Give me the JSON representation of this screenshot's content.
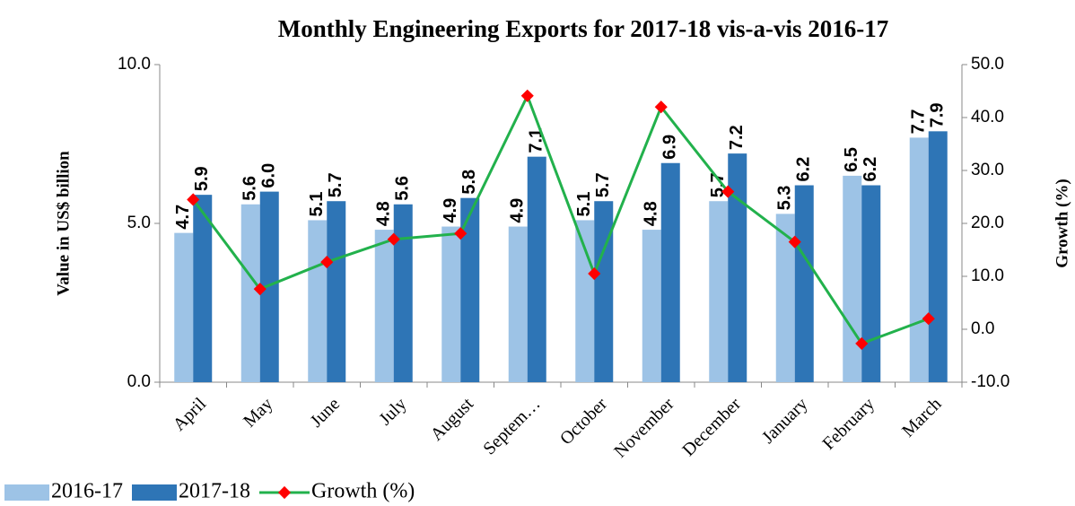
{
  "chart_data": {
    "type": "bar_line",
    "title": "Monthly Engineering Exports for 2017-18 vis-a-vis 2016-17",
    "y_label": "Value in US$ billion",
    "y2_label": "Growth (%)",
    "categories": [
      "April",
      "May",
      "June",
      "July",
      "August",
      "Septem…",
      "October",
      "November",
      "December",
      "January",
      "February",
      "March"
    ],
    "series": [
      {
        "name": "2016-17",
        "type": "bar",
        "color": "#9dc3e6",
        "values": [
          4.7,
          5.6,
          5.1,
          4.8,
          4.9,
          4.9,
          5.1,
          4.8,
          5.7,
          5.3,
          6.5,
          7.7
        ],
        "value_labels": [
          "4.7",
          "5.6",
          "5.1",
          "4.8",
          "4.9",
          "4.9",
          "5.1",
          "4.8",
          "5.7",
          "5.3",
          "6.5",
          "7.7"
        ]
      },
      {
        "name": "2017-18",
        "type": "bar",
        "color": "#2e75b6",
        "values": [
          5.9,
          6.0,
          5.7,
          5.6,
          5.8,
          7.1,
          5.7,
          6.9,
          7.2,
          6.2,
          6.2,
          7.9
        ],
        "value_labels": [
          "5.9",
          "6.0",
          "5.7",
          "5.6",
          "5.8",
          "7.1",
          "5.7",
          "6.9",
          "7.2",
          "6.2",
          "6.2",
          "7.9"
        ]
      },
      {
        "name": "Growth (%)",
        "type": "line",
        "axis": "y2",
        "color": "#22b14c",
        "marker_color": "#ff0000",
        "values": [
          24.5,
          7.6,
          12.7,
          17,
          18.1,
          44.1,
          10.5,
          42,
          26,
          16.5,
          -2.7,
          2.0
        ]
      }
    ],
    "ylim": [
      0,
      10
    ],
    "yticks": [
      {
        "value": 0,
        "label": "0.0"
      },
      {
        "value": 5,
        "label": "5.0"
      },
      {
        "value": 10,
        "label": "10.0"
      }
    ],
    "y2lim": [
      -10,
      50
    ],
    "y2ticks": [
      {
        "value": -10,
        "label": "-10.0"
      },
      {
        "value": 0,
        "label": "0.0"
      },
      {
        "value": 10,
        "label": "10.0"
      },
      {
        "value": 20,
        "label": "20.0"
      },
      {
        "value": 30,
        "label": "30.0"
      },
      {
        "value": 40,
        "label": "40.0"
      },
      {
        "value": 50,
        "label": "50.0"
      }
    ],
    "legend": "bottom-left"
  }
}
